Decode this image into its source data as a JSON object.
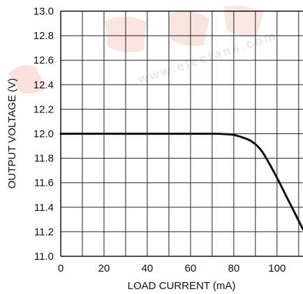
{
  "chart_data": {
    "type": "line",
    "title": "",
    "xlabel": "LOAD CURRENT (mA)",
    "ylabel": "OUTPUT VOLTAGE (V)",
    "xlim": [
      0,
      112
    ],
    "ylim": [
      11.0,
      13.0
    ],
    "x_ticks": [
      0,
      20,
      40,
      60,
      80,
      100
    ],
    "x_tick_labels": [
      "0",
      "20",
      "40",
      "60",
      "80",
      "100"
    ],
    "y_ticks": [
      11.0,
      11.2,
      11.4,
      11.6,
      11.8,
      12.0,
      12.2,
      12.4,
      12.6,
      12.8,
      13.0
    ],
    "y_tick_labels": [
      "11.0",
      "11.2",
      "11.4",
      "11.6",
      "11.8",
      "12.0",
      "12.2",
      "12.4",
      "12.6",
      "12.8",
      "13.0"
    ],
    "x_gridlines": [
      10,
      20,
      30,
      40,
      50,
      60,
      70,
      80,
      90,
      100,
      110
    ],
    "y_gridlines": [
      11.2,
      11.4,
      11.6,
      11.8,
      12.0,
      12.2,
      12.4,
      12.6,
      12.8
    ],
    "grid": true,
    "series": [
      {
        "color": "#111111",
        "x": [
          0,
          20,
          40,
          60,
          70,
          75,
          80,
          84,
          88,
          92,
          95,
          100,
          104,
          108,
          112
        ],
        "y": [
          12.0,
          12.0,
          12.0,
          12.0,
          12.0,
          11.998,
          11.99,
          11.97,
          11.94,
          11.88,
          11.8,
          11.64,
          11.5,
          11.36,
          11.22
        ]
      }
    ],
    "watermark": "www.elecfans.com"
  }
}
